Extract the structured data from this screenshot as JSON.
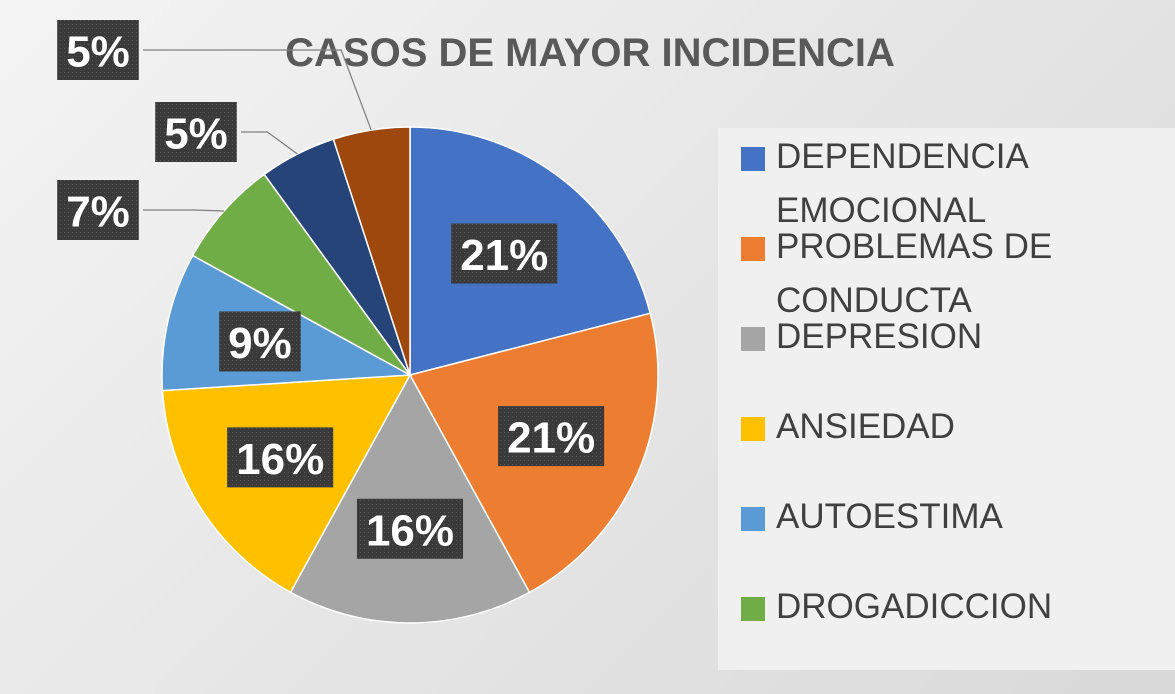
{
  "chart_data": {
    "type": "pie",
    "title": "CASOS DE MAYOR INCIDENCIA",
    "categories": [
      "DEPENDENCIA EMOCIONAL",
      "PROBLEMAS DE CONDUCTA",
      "DEPRESION",
      "ANSIEDAD",
      "AUTOESTIMA",
      "DROGADICCION",
      null,
      null
    ],
    "values": [
      21,
      21,
      16,
      16,
      9,
      7,
      5,
      5
    ],
    "value_labels": [
      "21%",
      "21%",
      "16%",
      "16%",
      "9%",
      "7%",
      "5%",
      "5%"
    ],
    "colors": [
      "#4472c4",
      "#ed7d31",
      "#a5a5a5",
      "#ffc000",
      "#5b9bd5",
      "#70ad47",
      "#264478",
      "#9e480e"
    ]
  }
}
